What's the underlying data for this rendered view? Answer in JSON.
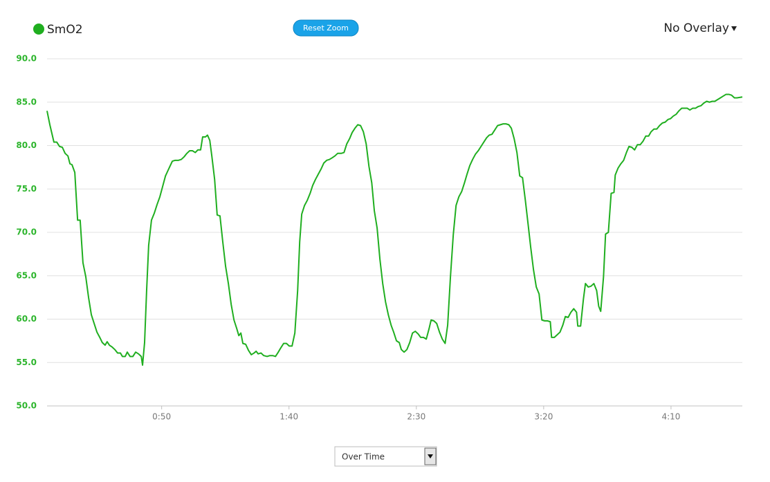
{
  "chart_data": {
    "type": "line",
    "series": [
      {
        "name": "SmO2",
        "color": "#1fae1f",
        "x": [
          5.0,
          6.1,
          7.7,
          8.8,
          9.9,
          11.0,
          12.1,
          13.2,
          14.0,
          14.8,
          15.9,
          17.0,
          18.0,
          19.1,
          20.2,
          21.3,
          22.4,
          23.5,
          24.6,
          25.7,
          26.7,
          27.8,
          28.6,
          29.5,
          30.5,
          31.6,
          32.7,
          33.8,
          34.6,
          35.7,
          36.5,
          37.6,
          38.7,
          39.8,
          40.9,
          42.0,
          42.5,
          43.3,
          44.1,
          44.9,
          46.0,
          47.1,
          48.2,
          49.3,
          50.4,
          51.5,
          52.6,
          53.4,
          54.2,
          55.3,
          56.6,
          57.7,
          58.8,
          59.9,
          61.0,
          62.1,
          63.2,
          64.2,
          65.3,
          66.1,
          67.2,
          68.0,
          68.9,
          69.7,
          70.8,
          71.8,
          72.9,
          74.0,
          75.1,
          76.2,
          77.3,
          78.4,
          79.5,
          80.3,
          81.1,
          81.9,
          83.0,
          84.1,
          85.2,
          86.3,
          87.1,
          87.9,
          89.0,
          90.1,
          91.4,
          92.5,
          93.6,
          94.7,
          95.8,
          96.8,
          97.9,
          99.0,
          100.1,
          101.2,
          102.3,
          103.4,
          104.2,
          105.0,
          106.1,
          107.2,
          108.3,
          109.3,
          110.4,
          111.5,
          112.6,
          113.7,
          114.8,
          115.9,
          117.0,
          118.0,
          119.1,
          120.5,
          121.6,
          122.7,
          123.8,
          124.8,
          125.9,
          127.0,
          128.1,
          129.2,
          130.3,
          131.4,
          132.5,
          133.5,
          134.6,
          135.7,
          136.8,
          137.9,
          139.0,
          140.1,
          141.1,
          142.2,
          143.3,
          144.1,
          145.2,
          146.3,
          147.4,
          148.5,
          149.6,
          150.7,
          151.7,
          152.8,
          153.9,
          155.0,
          155.8,
          156.9,
          158.0,
          159.1,
          160.2,
          161.3,
          162.3,
          163.4,
          164.5,
          165.6,
          166.7,
          167.8,
          168.9,
          169.9,
          171.0,
          172.1,
          173.2,
          174.3,
          175.4,
          176.5,
          177.6,
          178.6,
          179.7,
          180.8,
          181.9,
          183.0,
          184.1,
          185.2,
          186.3,
          187.3,
          188.4,
          189.5,
          190.6,
          191.7,
          192.8,
          193.9,
          194.9,
          196.0,
          197.1,
          198.2,
          199.3,
          200.4,
          201.5,
          202.6,
          203.1,
          204.2,
          205.3,
          206.4,
          207.5,
          208.5,
          209.6,
          210.7,
          211.8,
          212.9,
          213.4,
          214.5,
          215.6,
          216.4,
          217.5,
          218.6,
          219.7,
          220.8,
          221.6,
          222.4,
          223.5,
          224.3,
          225.4,
          226.5,
          227.6,
          228.1,
          229.2,
          230.3,
          231.4,
          232.5,
          233.5,
          234.6,
          235.7,
          236.8,
          237.9,
          239.0,
          240.1,
          241.2,
          242.2,
          243.3,
          244.4,
          245.5,
          246.6,
          247.7,
          248.8,
          249.8,
          250.9,
          252.0,
          253.1,
          254.2,
          255.3,
          256.4,
          257.4,
          258.5,
          259.6,
          260.7,
          261.8,
          262.9,
          264.0,
          265.1,
          266.2,
          267.2,
          268.3,
          269.4,
          270.5,
          271.6,
          272.7,
          273.8,
          274.9,
          275.9,
          278.0
        ],
        "values": [
          84.0,
          82.4,
          80.4,
          80.4,
          79.9,
          79.8,
          79.1,
          78.8,
          77.9,
          77.8,
          76.9,
          71.4,
          71.4,
          66.5,
          64.9,
          62.5,
          60.5,
          59.5,
          58.5,
          57.9,
          57.3,
          57.0,
          57.4,
          57.0,
          56.8,
          56.5,
          56.1,
          56.1,
          55.7,
          55.7,
          56.2,
          55.7,
          55.7,
          56.2,
          56.0,
          55.7,
          54.7,
          57.3,
          63.3,
          68.5,
          71.4,
          72.2,
          73.2,
          74.1,
          75.3,
          76.5,
          77.2,
          77.7,
          78.2,
          78.3,
          78.3,
          78.4,
          78.7,
          79.1,
          79.4,
          79.4,
          79.2,
          79.5,
          79.5,
          81.0,
          81.0,
          81.2,
          80.6,
          78.8,
          76.1,
          72.0,
          71.9,
          68.9,
          66.1,
          64.1,
          61.7,
          59.9,
          58.9,
          58.1,
          58.4,
          57.2,
          57.1,
          56.4,
          55.9,
          56.1,
          56.3,
          56.0,
          56.1,
          55.8,
          55.7,
          55.8,
          55.8,
          55.7,
          56.2,
          56.7,
          57.2,
          57.2,
          56.9,
          56.9,
          58.4,
          63.3,
          68.9,
          72.1,
          73.1,
          73.7,
          74.5,
          75.4,
          76.1,
          76.7,
          77.3,
          78.0,
          78.3,
          78.4,
          78.6,
          78.8,
          79.1,
          79.1,
          79.2,
          80.2,
          80.8,
          81.5,
          82.0,
          82.4,
          82.3,
          81.6,
          80.2,
          77.6,
          75.7,
          72.5,
          70.5,
          66.9,
          64.1,
          62.0,
          60.5,
          59.3,
          58.5,
          57.5,
          57.3,
          56.5,
          56.2,
          56.5,
          57.3,
          58.4,
          58.6,
          58.3,
          57.9,
          57.9,
          57.7,
          58.9,
          59.9,
          59.8,
          59.5,
          58.5,
          57.7,
          57.2,
          59.3,
          64.9,
          69.7,
          73.1,
          74.1,
          74.7,
          75.7,
          76.7,
          77.7,
          78.4,
          79.0,
          79.4,
          79.9,
          80.4,
          80.9,
          81.2,
          81.3,
          81.8,
          82.3,
          82.4,
          82.5,
          82.5,
          82.4,
          82.0,
          80.8,
          79.2,
          76.5,
          76.3,
          73.7,
          70.9,
          68.3,
          65.7,
          63.7,
          62.9,
          59.9,
          59.8,
          59.8,
          59.7,
          57.9,
          57.9,
          58.2,
          58.5,
          59.3,
          60.3,
          60.2,
          60.8,
          61.2,
          60.8,
          59.2,
          59.2,
          62.3,
          64.1,
          63.7,
          63.8,
          64.1,
          63.3,
          61.5,
          60.9,
          64.9,
          69.8,
          70.0,
          74.5,
          74.6,
          76.6,
          77.4,
          77.9,
          78.3,
          79.2,
          79.9,
          79.8,
          79.5,
          80.1,
          80.1,
          80.5,
          81.1,
          81.1,
          81.6,
          81.9,
          81.9,
          82.3,
          82.6,
          82.7,
          83.0,
          83.1,
          83.4,
          83.6,
          84.0,
          84.3,
          84.3,
          84.3,
          84.1,
          84.3,
          84.3,
          84.5,
          84.6,
          84.9,
          85.1,
          85.0,
          85.1,
          85.1,
          85.3,
          85.5,
          85.7,
          85.9,
          85.9,
          85.8,
          85.5,
          85.5,
          85.6
        ]
      }
    ],
    "xlim": [
      5,
      278
    ],
    "xticks": [
      {
        "value": 50,
        "label": "0:50"
      },
      {
        "value": 100,
        "label": "1:40"
      },
      {
        "value": 150,
        "label": "2:30"
      },
      {
        "value": 200,
        "label": "3:20"
      },
      {
        "value": 250,
        "label": "4:10"
      }
    ],
    "ylim": [
      50,
      90
    ],
    "yticks": [
      {
        "value": 50,
        "label": "50.0"
      },
      {
        "value": 55,
        "label": "55.0"
      },
      {
        "value": 60,
        "label": "60.0"
      },
      {
        "value": 65,
        "label": "65.0"
      },
      {
        "value": 70,
        "label": "70.0"
      },
      {
        "value": 75,
        "label": "75.0"
      },
      {
        "value": 80,
        "label": "80.0"
      },
      {
        "value": 85,
        "label": "85.0"
      },
      {
        "value": 90,
        "label": "90.0"
      }
    ],
    "grid": true,
    "legend": "top-left"
  },
  "controls": {
    "reset_zoom": "Reset Zoom",
    "overlay": "No Overlay",
    "mode": "Over Time"
  }
}
